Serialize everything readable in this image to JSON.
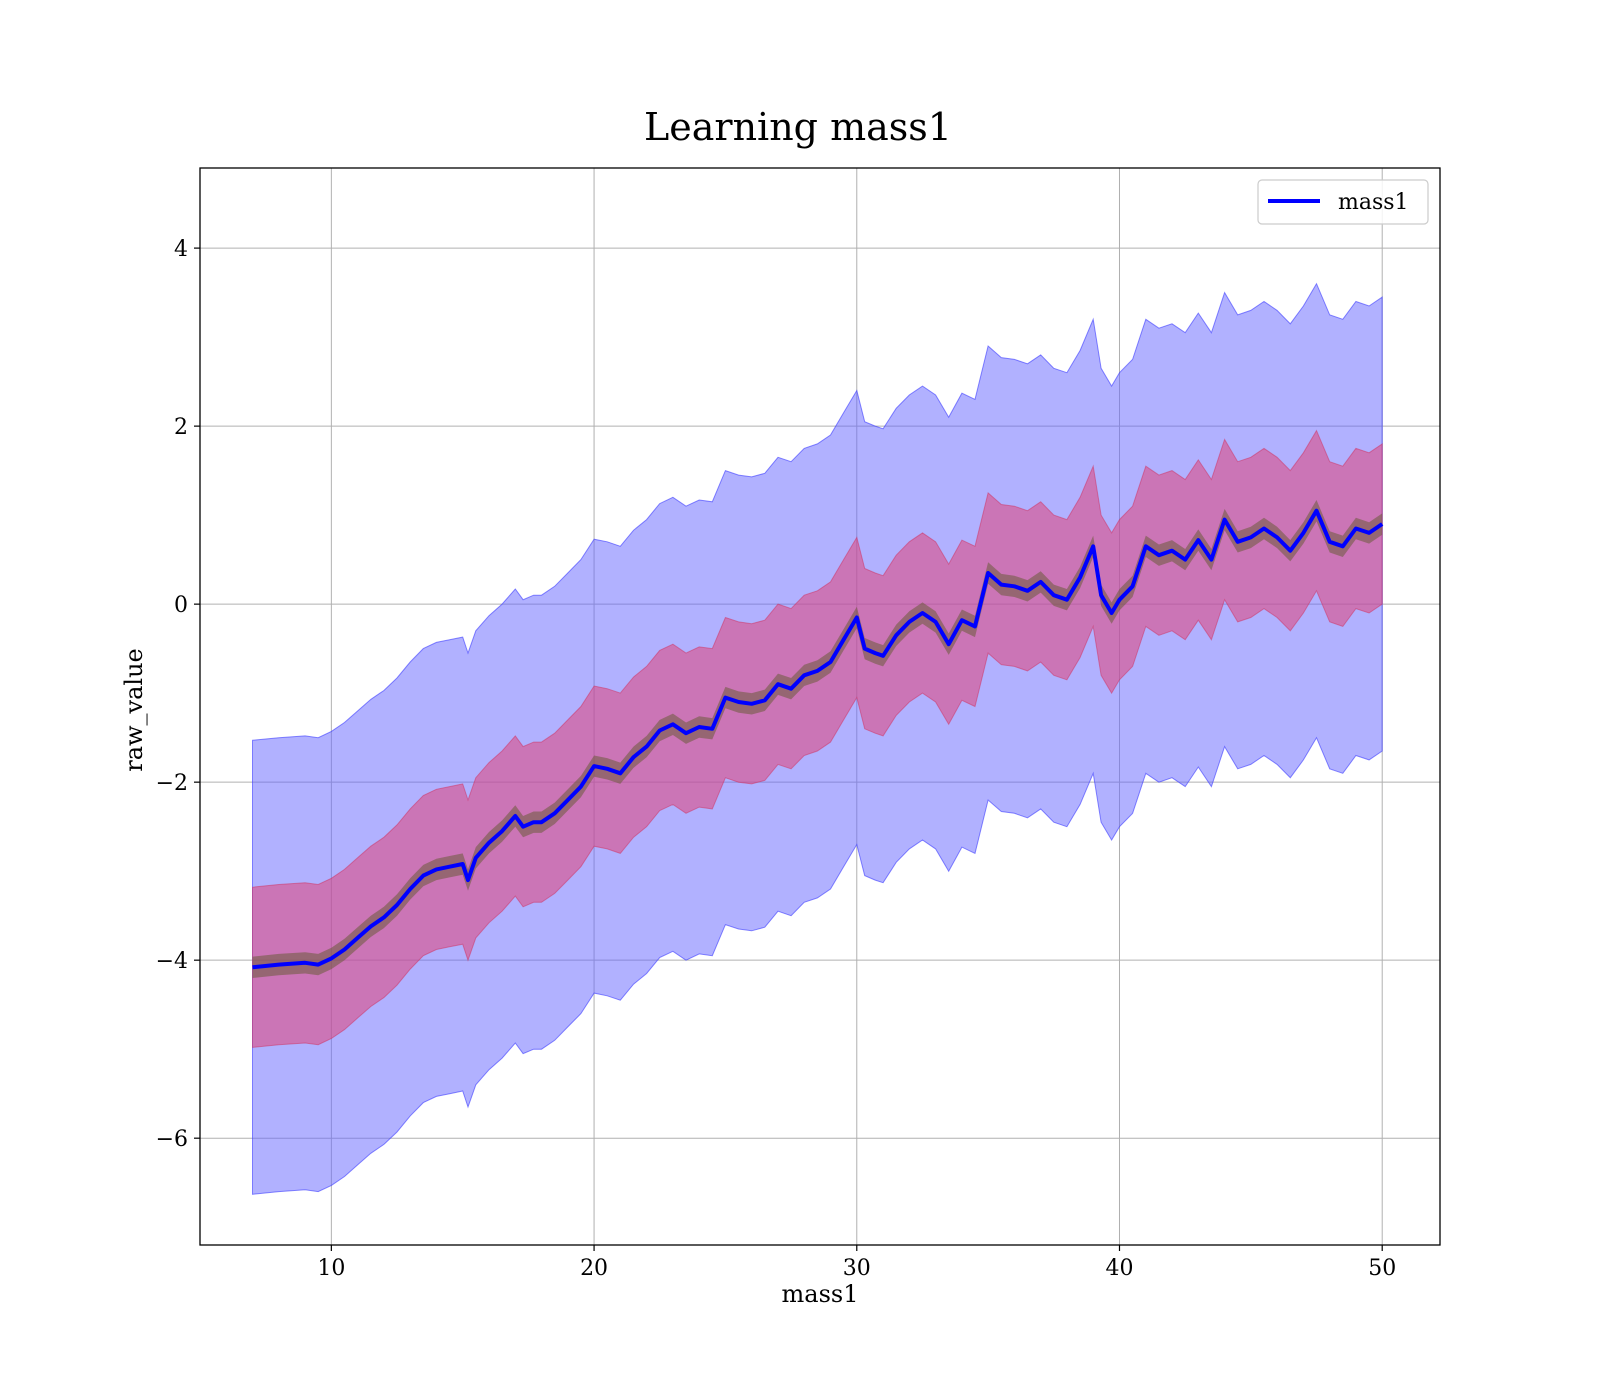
{
  "chart_data": {
    "type": "line",
    "title": "Learning mass1",
    "xlabel": "mass1",
    "ylabel": "raw_value",
    "xlim": [
      5,
      52.2
    ],
    "ylim": [
      -7.2,
      4.9
    ],
    "xticks": [
      10,
      20,
      30,
      40,
      50
    ],
    "xtick_labels": [
      "10",
      "20",
      "30",
      "40",
      "50"
    ],
    "yticks": [
      -6,
      -4,
      -2,
      0,
      2,
      4
    ],
    "ytick_labels": [
      "−6",
      "−4",
      "−2",
      "0",
      "2",
      "4"
    ],
    "grid": true,
    "legend": {
      "position": "top-right",
      "entries": [
        "mass1"
      ]
    },
    "series": [
      {
        "name": "mass1",
        "color": "#0000ff",
        "x": [
          7,
          8,
          9,
          9.5,
          10,
          10.5,
          11,
          11.5,
          12,
          12.5,
          13,
          13.5,
          14,
          14.5,
          15,
          15.2,
          15.5,
          16,
          16.5,
          17,
          17.3,
          17.7,
          18,
          18.5,
          19,
          19.5,
          20,
          20.5,
          21,
          21.5,
          22,
          22.5,
          23,
          23.5,
          24,
          24.5,
          25,
          25.5,
          26,
          26.5,
          27,
          27.5,
          28,
          28.5,
          29,
          29.5,
          30,
          30.3,
          30.7,
          31,
          31.5,
          32,
          32.5,
          33,
          33.5,
          34,
          34.5,
          35,
          35.5,
          36,
          36.5,
          37,
          37.5,
          38,
          38.5,
          39,
          39.3,
          39.7,
          40,
          40.5,
          41,
          41.5,
          42,
          42.5,
          43,
          43.5,
          44,
          44.5,
          45,
          45.5,
          46,
          46.5,
          47,
          47.5,
          48,
          48.5,
          49,
          49.5,
          50
        ],
        "mean": [
          -4.08,
          -4.05,
          -4.03,
          -4.05,
          -3.98,
          -3.88,
          -3.75,
          -3.62,
          -3.52,
          -3.38,
          -3.2,
          -3.05,
          -2.98,
          -2.95,
          -2.92,
          -3.1,
          -2.85,
          -2.68,
          -2.55,
          -2.38,
          -2.5,
          -2.45,
          -2.45,
          -2.35,
          -2.2,
          -2.05,
          -1.82,
          -1.85,
          -1.9,
          -1.72,
          -1.6,
          -1.42,
          -1.35,
          -1.45,
          -1.38,
          -1.4,
          -1.05,
          -1.1,
          -1.12,
          -1.08,
          -0.9,
          -0.95,
          -0.8,
          -0.75,
          -0.65,
          -0.4,
          -0.15,
          -0.5,
          -0.55,
          -0.58,
          -0.35,
          -0.2,
          -0.1,
          -0.2,
          -0.45,
          -0.18,
          -0.25,
          0.35,
          0.22,
          0.2,
          0.15,
          0.25,
          0.1,
          0.05,
          0.3,
          0.65,
          0.1,
          -0.1,
          0.05,
          0.2,
          0.65,
          0.55,
          0.6,
          0.5,
          0.72,
          0.5,
          0.95,
          0.7,
          0.75,
          0.85,
          0.75,
          0.6,
          0.8,
          1.05,
          0.7,
          0.65,
          0.85,
          0.8,
          0.9
        ],
        "band_1sd": 0.9,
        "band_narrow": 0.12,
        "band_3sd": 2.55
      }
    ]
  }
}
